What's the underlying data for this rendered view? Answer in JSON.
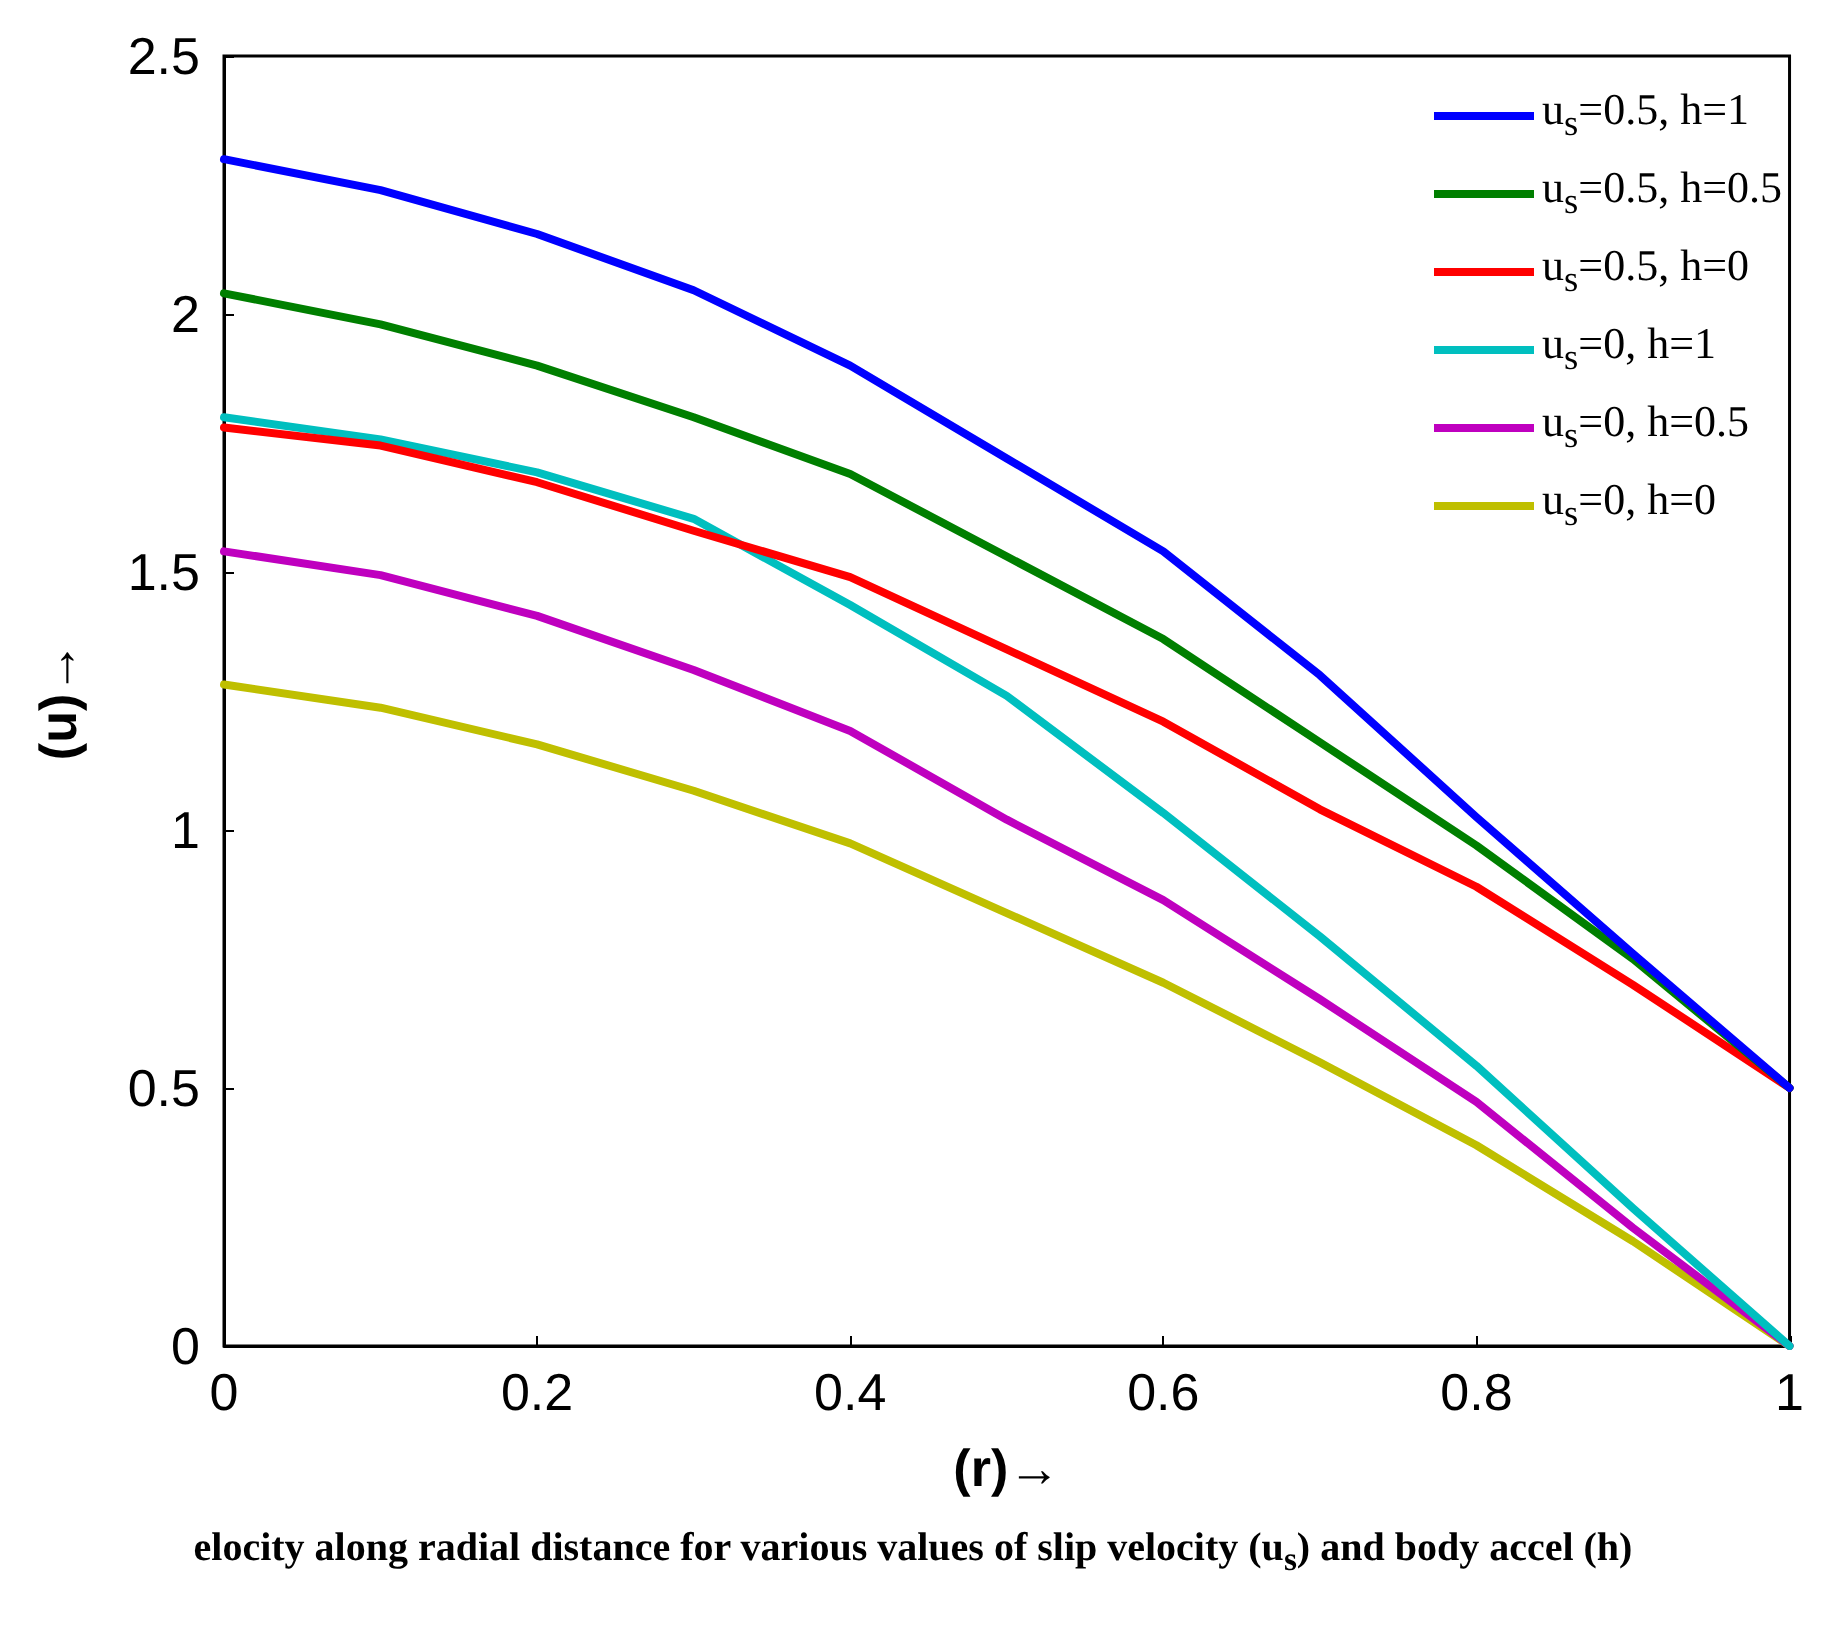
{
  "chart_data": {
    "type": "line",
    "xlabel": "(r)→",
    "ylabel": "(u)→",
    "x": [
      0,
      0.1,
      0.2,
      0.3,
      0.4,
      0.5,
      0.6,
      0.7,
      0.8,
      0.9,
      1
    ],
    "xlim": [
      0,
      1
    ],
    "xticks": [
      0,
      0.2,
      0.4,
      0.6,
      0.8,
      1
    ],
    "ylim": [
      0,
      2.5
    ],
    "yticks": [
      0,
      0.5,
      1,
      1.5,
      2,
      2.5
    ],
    "grid": false,
    "legend": "top right",
    "marker": "none",
    "line_style": "solid",
    "series": [
      {
        "name": "u$_{s}$=0.5, h=1",
        "color": "#0000ff",
        "values": [
          2.3,
          2.24,
          2.155,
          2.046,
          1.9,
          1.72,
          1.54,
          1.3,
          1.025,
          0.76,
          0.5
        ]
      },
      {
        "name": "u$_{s}$=0.5, h=0.5",
        "color": "#007f00",
        "values": [
          2.04,
          1.98,
          1.9,
          1.8,
          1.69,
          1.53,
          1.37,
          1.17,
          0.97,
          0.75,
          0.5
        ]
      },
      {
        "name": "u$_{s}$=0.5, h=0",
        "color": "#ff0000",
        "values": [
          1.78,
          1.745,
          1.674,
          1.58,
          1.49,
          1.35,
          1.21,
          1.04,
          0.89,
          0.7,
          0.5
        ]
      },
      {
        "name": "u$_{s}$=0, h=1",
        "color": "#00bfbf",
        "values": [
          1.8,
          1.757,
          1.693,
          1.603,
          1.436,
          1.26,
          1.033,
          0.794,
          0.543,
          0.267,
          0
        ]
      },
      {
        "name": "u$_{s}$=0, h=0.5",
        "color": "#bf00bf",
        "values": [
          1.54,
          1.494,
          1.415,
          1.31,
          1.192,
          1.02,
          0.864,
          0.672,
          0.473,
          0.229,
          0
        ]
      },
      {
        "name": "u$_{s}$=0, h=0",
        "color": "#bfbf00",
        "values": [
          1.282,
          1.237,
          1.166,
          1.076,
          0.974,
          0.839,
          0.704,
          0.55,
          0.389,
          0.203,
          0
        ]
      }
    ],
    "annotations": [
      "elocity along radial distance for various values of slip velocity (u$_{s}$) and body accel (h)"
    ]
  }
}
